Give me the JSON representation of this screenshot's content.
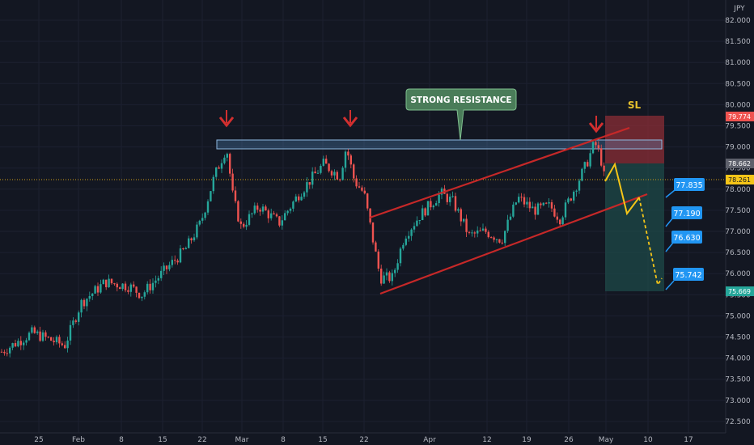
{
  "chart_data": {
    "type": "candlestick",
    "currency": "JPY",
    "y_ticks": [
      "82.000",
      "81.500",
      "81.000",
      "80.500",
      "80.000",
      "79.500",
      "79.000",
      "78.500",
      "78.000",
      "77.500",
      "77.000",
      "76.500",
      "76.000",
      "75.500",
      "75.000",
      "74.500",
      "74.000",
      "73.500",
      "73.000",
      "72.500"
    ],
    "x_ticks": [
      "25",
      "Feb",
      "8",
      "15",
      "22",
      "Mar",
      "8",
      "15",
      "22",
      "Apr",
      "12",
      "19",
      "26",
      "May",
      "10",
      "17"
    ],
    "price_badges": {
      "stop_loss": "79.774",
      "entry": "78.662",
      "current": "78.261",
      "target": "75.669"
    },
    "annotations": {
      "resistance_label": "STRONG RESISTANCE",
      "sl_label": "SL",
      "targets": [
        "77.835",
        "77.190",
        "76.630",
        "75.742"
      ]
    },
    "colors": {
      "background": "#131722",
      "up": "#26a69a",
      "down": "#ef5350",
      "channel": "#c62828",
      "projection": "#f5c518",
      "resistance_zone": "#5b9bd5",
      "label_box": "#2196f3",
      "stop_zone": "#8b2e36",
      "target_zone": "#1e4a48"
    }
  }
}
